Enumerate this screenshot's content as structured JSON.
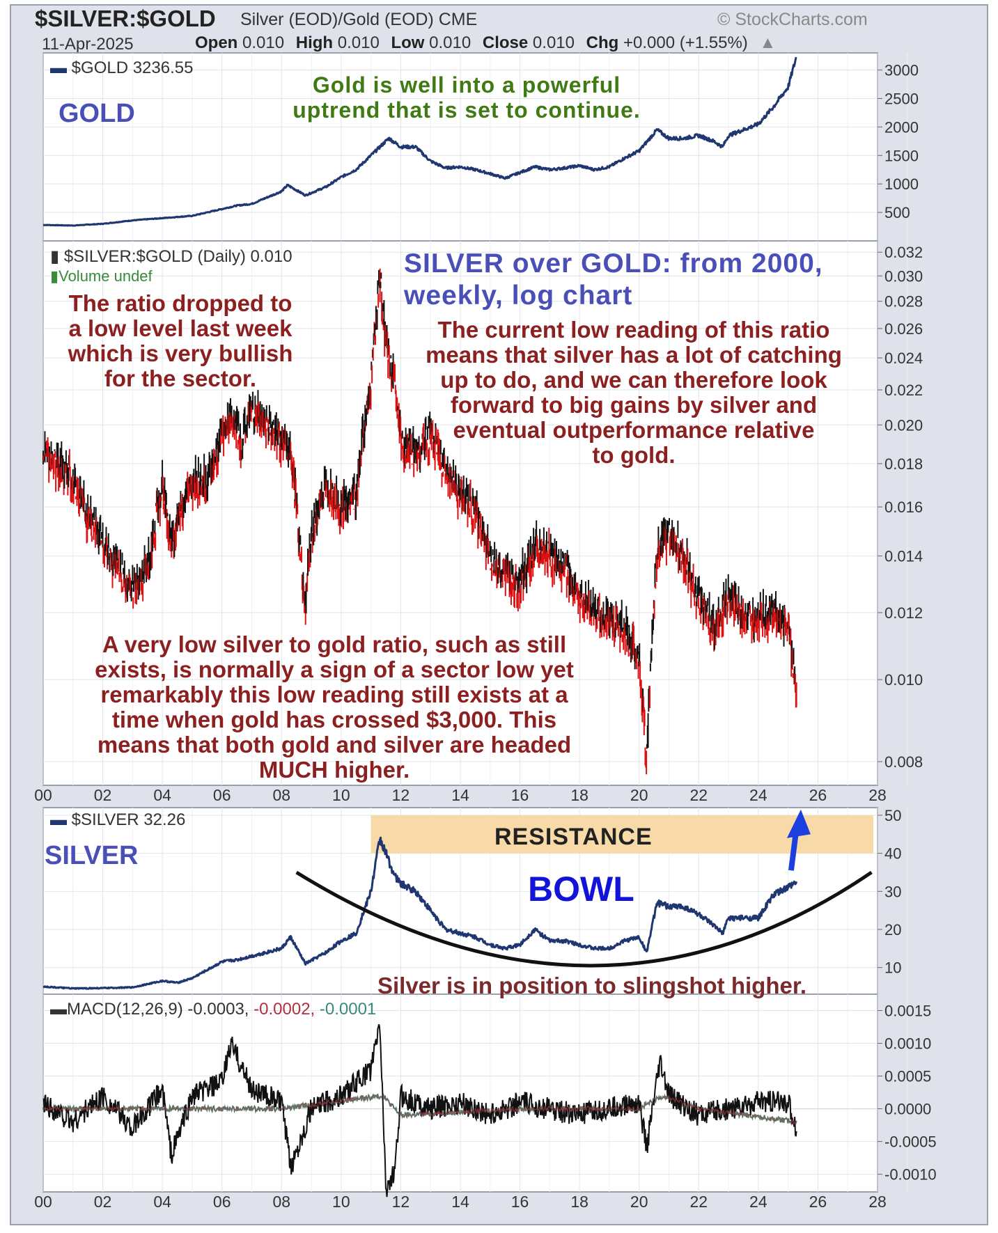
{
  "header": {
    "symbol": "$SILVER:$GOLD",
    "description": "Silver (EOD)/Gold (EOD) CME",
    "source": "© StockCharts.com",
    "date": "11-Apr-2025",
    "open_label": "Open",
    "open": "0.010",
    "high_label": "High",
    "high": "0.010",
    "low_label": "Low",
    "low": "0.010",
    "close_label": "Close",
    "close": "0.010",
    "chg_label": "Chg",
    "chg": "+0.000 (+1.55%)"
  },
  "annotations": {
    "gold_text": "Gold is well into a powerful\nuptrend that is set to continue.",
    "chart_title": "SILVER over GOLD: from 2000,\nweekly, log chart",
    "left_text": "The ratio dropped to\na  low level last week\nwhich is very bullish\nfor the sector.",
    "right_text": "The current low reading of this ratio\nmeans that silver has a lot of catching\nup to do, and we can therefore look\nforward to big gains by silver and\neventual outperformance relative\nto gold.",
    "bottom_text": "A very low silver to  gold ratio, such as still\nexists, is normally a sign of a sector low yet\nremarkably this low reading still exists at a\ntime when gold has crossed  $3,000. This\nmeans that both gold and silver are headed\nMUCH higher.",
    "slingshot_text": "Silver is in position to slingshot higher.",
    "gold_label": "GOLD",
    "silver_label": "SILVER",
    "bowl_label": "BOWL",
    "resistance_label": "RESISTANCE"
  },
  "legends": {
    "gold": "$GOLD 3236.55",
    "ratio": "$SILVER:$GOLD (Daily) 0.010",
    "volume": "Volume undef",
    "silver": "$SILVER 32.26",
    "macd": "MACD(12,26,9) -0.0003,",
    "macd_signal": " -0.0002,",
    "macd_hist": " -0.0001"
  },
  "colors": {
    "gold_line": "#1f3670",
    "silver_line": "#1f3670",
    "ratio_bar": "#111111",
    "ratio_down": "#dd1111",
    "resistance_band": "#f8d9a8",
    "bowl": "#111111",
    "arrow": "#1e3fe0",
    "macd_line": "#111111",
    "macd_signal": "#c04050",
    "macd_hist": "#2a8a70"
  },
  "chart_data": [
    {
      "type": "line",
      "panel": "gold",
      "x_ticks": [
        "00",
        "02",
        "04",
        "06",
        "08",
        "10",
        "12",
        "14",
        "16",
        "18",
        "20",
        "22",
        "24",
        "26",
        "28"
      ],
      "y_ticks": [
        3000,
        2500,
        2000,
        1500,
        1000,
        500
      ],
      "ylim": [
        0,
        3300
      ],
      "xlim": [
        2000,
        2028
      ],
      "series": [
        {
          "x": [
            2000,
            2001,
            2002,
            2003,
            2004,
            2005,
            2006,
            2006.5,
            2007,
            2008,
            2008.2,
            2008.8,
            2009.5,
            2010,
            2010.5,
            2011,
            2011.6,
            2012,
            2012.5,
            2013,
            2013.5,
            2014,
            2014.5,
            2015,
            2015.5,
            2016,
            2016.5,
            2017,
            2017.5,
            2018,
            2018.5,
            2019,
            2019.5,
            2020,
            2020.6,
            2021,
            2021.5,
            2022,
            2022.5,
            2022.8,
            2023,
            2023.5,
            2024,
            2024.5,
            2025,
            2025.28
          ],
          "values": [
            280,
            270,
            300,
            360,
            400,
            440,
            560,
            620,
            650,
            870,
            980,
            800,
            950,
            1120,
            1250,
            1500,
            1800,
            1650,
            1650,
            1400,
            1280,
            1300,
            1250,
            1180,
            1100,
            1200,
            1300,
            1250,
            1280,
            1320,
            1250,
            1300,
            1450,
            1580,
            1950,
            1800,
            1800,
            1850,
            1750,
            1650,
            1850,
            1950,
            2050,
            2350,
            2700,
            3236
          ]
        }
      ]
    },
    {
      "type": "bar",
      "panel": "ratio",
      "scale": "log",
      "x_ticks": [
        "00",
        "02",
        "04",
        "06",
        "08",
        "10",
        "12",
        "14",
        "16",
        "18",
        "20",
        "22",
        "24",
        "26",
        "28"
      ],
      "y_ticks": [
        0.032,
        0.03,
        0.028,
        0.026,
        0.024,
        0.022,
        0.02,
        0.018,
        0.016,
        0.014,
        0.012,
        0.01,
        0.008
      ],
      "ylim": [
        0.0075,
        0.033
      ],
      "xlim": [
        2000,
        2028
      ],
      "series": [
        {
          "x": [
            2000,
            2000.5,
            2001,
            2001.5,
            2002,
            2002.5,
            2003,
            2003.5,
            2004,
            2004.3,
            2004.8,
            2005,
            2005.5,
            2006,
            2006.3,
            2006.7,
            2007,
            2007.5,
            2008,
            2008.3,
            2008.8,
            2009,
            2009.5,
            2010,
            2010.5,
            2011,
            2011.3,
            2011.5,
            2011.8,
            2012,
            2012.5,
            2013,
            2013.5,
            2014,
            2014.5,
            2015,
            2015.5,
            2016,
            2016.5,
            2017,
            2017.5,
            2018,
            2018.5,
            2019,
            2019.5,
            2020,
            2020.25,
            2020.6,
            2021,
            2021.3,
            2021.8,
            2022,
            2022.5,
            2023,
            2023.5,
            2024,
            2024.5,
            2025,
            2025.28
          ],
          "values": [
            0.0185,
            0.018,
            0.0172,
            0.0155,
            0.0145,
            0.0135,
            0.0128,
            0.0135,
            0.017,
            0.0145,
            0.0165,
            0.017,
            0.0172,
            0.0195,
            0.0205,
            0.019,
            0.021,
            0.02,
            0.0192,
            0.0185,
            0.012,
            0.015,
            0.017,
            0.016,
            0.0165,
            0.0225,
            0.03,
            0.025,
            0.022,
            0.019,
            0.0185,
            0.0195,
            0.0175,
            0.0165,
            0.0158,
            0.014,
            0.0132,
            0.013,
            0.0145,
            0.014,
            0.0135,
            0.0125,
            0.012,
            0.0118,
            0.0115,
            0.0105,
            0.008,
            0.014,
            0.015,
            0.0145,
            0.013,
            0.0125,
            0.0115,
            0.0125,
            0.012,
            0.0118,
            0.012,
            0.0115,
            0.0096
          ]
        }
      ]
    },
    {
      "type": "line",
      "panel": "silver",
      "x_ticks": [
        "00",
        "02",
        "04",
        "06",
        "08",
        "10",
        "12",
        "14",
        "16",
        "18",
        "20",
        "22",
        "24",
        "26",
        "28"
      ],
      "y_ticks": [
        50,
        40,
        30,
        20,
        10
      ],
      "ylim": [
        3,
        52
      ],
      "xlim": [
        2000,
        2028
      ],
      "series": [
        {
          "x": [
            2000,
            2001,
            2002,
            2003,
            2004,
            2004.5,
            2005,
            2006,
            2006.5,
            2007,
            2008,
            2008.3,
            2008.8,
            2009.5,
            2010,
            2010.5,
            2011,
            2011.3,
            2011.8,
            2012,
            2012.5,
            2013,
            2013.5,
            2014,
            2014.5,
            2015,
            2015.5,
            2016,
            2016.5,
            2017,
            2017.5,
            2018,
            2018.5,
            2019,
            2019.5,
            2020,
            2020.25,
            2020.6,
            2021,
            2021.5,
            2022,
            2022.5,
            2022.8,
            2023,
            2023.5,
            2024,
            2024.5,
            2025,
            2025.28
          ],
          "values": [
            5.0,
            4.5,
            4.6,
            4.8,
            6.5,
            6.0,
            7.2,
            11.5,
            12,
            13,
            15,
            18,
            11,
            14,
            17,
            19,
            30,
            44,
            34,
            32,
            30,
            25,
            20,
            19,
            18,
            16,
            15,
            16,
            20,
            17,
            17,
            16,
            15,
            15,
            17,
            18,
            14,
            27,
            26,
            26,
            24,
            21,
            19,
            23,
            23,
            23,
            29,
            31,
            32.26
          ]
        }
      ]
    },
    {
      "type": "line",
      "panel": "macd",
      "x_ticks": [
        "00",
        "02",
        "04",
        "06",
        "08",
        "10",
        "12",
        "14",
        "16",
        "18",
        "20",
        "22",
        "24",
        "26",
        "28"
      ],
      "y_ticks": [
        0.0015,
        0.001,
        0.0005,
        0.0,
        -0.0005,
        -0.001
      ],
      "ylim": [
        -0.00127,
        0.00175
      ],
      "xlim": [
        2000,
        2028
      ],
      "series": [
        {
          "name": "MACD",
          "x": [
            2000,
            2001,
            2002,
            2003,
            2004,
            2004.3,
            2005,
            2006,
            2006.3,
            2007,
            2008,
            2008.3,
            2009,
            2010,
            2010.5,
            2011,
            2011.3,
            2011.5,
            2011.8,
            2012,
            2013,
            2014,
            2015,
            2016,
            2017,
            2018,
            2019,
            2020,
            2020.25,
            2020.7,
            2021,
            2022,
            2023,
            2024,
            2025,
            2025.28
          ],
          "values": [
            0.0001,
            -0.0002,
            0.0002,
            -0.0003,
            0.0003,
            -0.0007,
            0.0002,
            0.0004,
            0.001,
            0.0003,
            0.0001,
            -0.0009,
            0.0,
            0.0002,
            0.0004,
            0.0006,
            0.0013,
            -0.0012,
            -0.001,
            0.0002,
            0.0,
            0.0001,
            -0.0001,
            0.0001,
            0.0,
            -0.0001,
            0.0,
            0.0001,
            -0.0006,
            0.0007,
            0.0002,
            -0.0001,
            0.0,
            0.0001,
            0.0001,
            -0.0003
          ]
        },
        {
          "name": "Signal",
          "x": [
            2000,
            2004,
            2008,
            2011.4,
            2012,
            2016,
            2020,
            2020.8,
            2022,
            2025.28
          ],
          "values": [
            0.0,
            0.0,
            0.0,
            0.0002,
            -0.0001,
            0.0,
            0.0,
            0.0002,
            0.0,
            -0.0002
          ]
        }
      ]
    }
  ]
}
